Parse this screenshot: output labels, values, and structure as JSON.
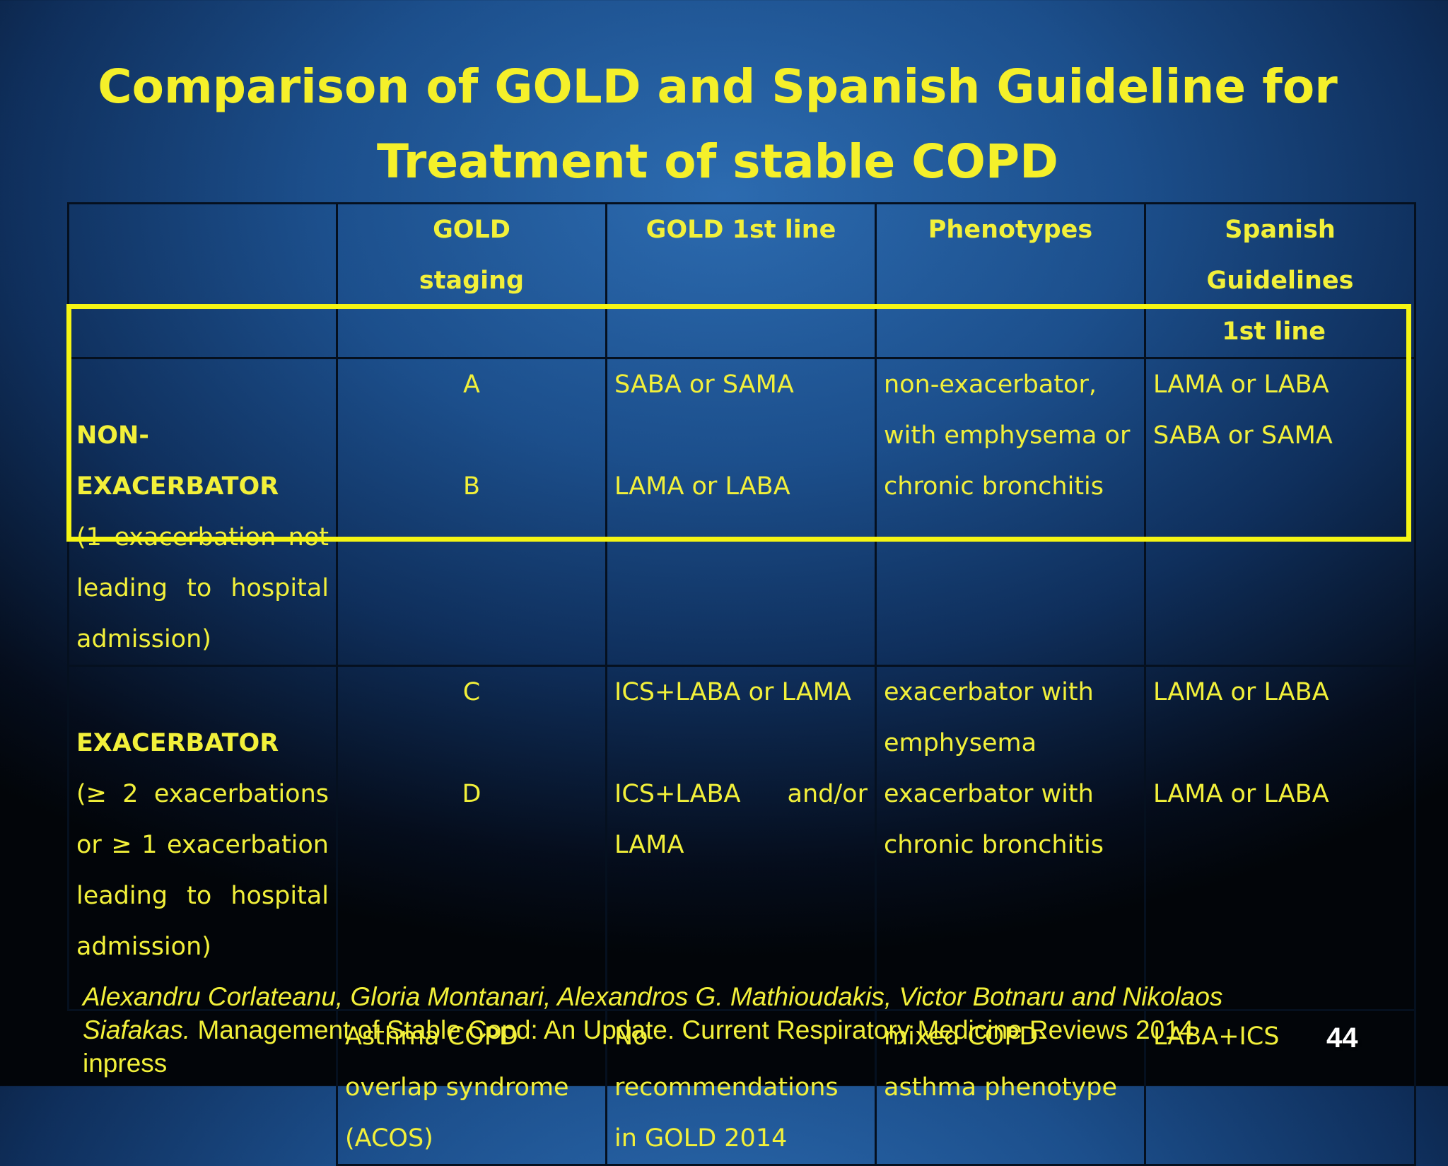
{
  "slide": {
    "title_line1": "Comparison of GOLD and Spanish Guideline for",
    "title_line2": "Treatment of stable COPD",
    "page_number": "44",
    "highlight_color": "#f5f514",
    "text_color": "#f2f03a"
  },
  "table": {
    "headers": {
      "gold_staging_line1": "GOLD",
      "gold_staging_line2": "staging",
      "gold_first_line": "GOLD 1st line",
      "phenotypes": "Phenotypes",
      "spanish_line1": "Spanish Guidelines",
      "spanish_line2": "1st line"
    },
    "rows": [
      {
        "group_label": "NON-EXACERBATOR",
        "group_desc": "(1 exacerbation not leading to hospital admission)",
        "stage_1": "A",
        "stage_2": "B",
        "gold_1": "SABA or SAMA",
        "gold_2": "LAMA or LABA",
        "phenotype": "non-exacerbator, with emphysema or chronic bronchitis",
        "spanish_1": "LAMA or LABA",
        "spanish_2": "SABA or SAMA"
      },
      {
        "group_label": "EXACERBATOR",
        "group_desc": "(≥ 2 exacerbations or ≥ 1 exacerbation leading to hospital admission)",
        "stage_1": "C",
        "stage_2": "D",
        "gold_1": "ICS+LABA or LAMA",
        "gold_2_a": "ICS+LABA",
        "gold_2_b": "and/or",
        "gold_2_c": "LAMA",
        "phenotype_1": "exacerbator with emphysema",
        "phenotype_2": "exacerbator with chronic bronchitis",
        "spanish_1": "LAMA or LABA",
        "spanish_2": "LAMA or LABA"
      },
      {
        "stage": "Asthma COPD overlap syndrome (ACOS)",
        "gold": "No recommendations in GOLD 2014",
        "phenotype": "mixed COPD-asthma phenotype",
        "spanish": "LABA+ICS"
      }
    ]
  },
  "citation": {
    "authors": "Alexandru Corlateanu, Gloria Montanari, Alexandros G. Mathioudakis, Victor Botnaru and Nikolaos Siafakas.",
    "reference": "Management of Stable Copd: An Update. Current Respiratory Medicine Reviews 2014 inpress"
  }
}
